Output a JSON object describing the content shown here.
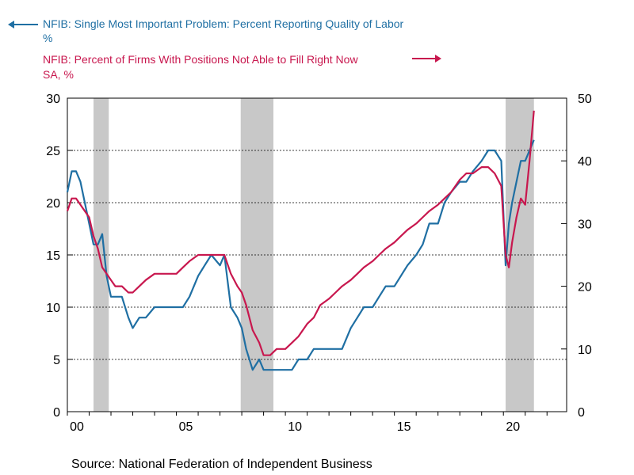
{
  "legend": {
    "series1_label": "NFIB: Single Most Important Problem: Percent Reporting Quality of Labor",
    "series1_unit": "%",
    "series2_label": "NFIB: Percent of Firms With Positions Not Able to Fill Right Now",
    "series2_unit": "SA, %"
  },
  "source": "Source:  National Federation of Independent Business",
  "chart_data": {
    "type": "line",
    "colors": {
      "series1": "#1f6fa3",
      "series2": "#c8174e",
      "recession": "#c8c8c8"
    },
    "grid": "horizontal dashed at left-axis ticks",
    "left_axis": {
      "ticks": [
        "0",
        "5",
        "10",
        "15",
        "20",
        "25",
        "30"
      ],
      "ylim": [
        0,
        30
      ]
    },
    "right_axis": {
      "ticks": [
        "0",
        "10",
        "20",
        "30",
        "40",
        "50"
      ],
      "ylim": [
        0,
        50
      ]
    },
    "x_axis": {
      "ticks": [
        "00",
        "05",
        "10",
        "15",
        "20"
      ],
      "xlim": [
        2000,
        2022.9
      ]
    },
    "recessions": [
      [
        2001.2,
        2001.9
      ],
      [
        2007.95,
        2009.45
      ],
      [
        2020.1,
        2021.4
      ]
    ],
    "series": [
      {
        "name": "NFIB: Single Most Important Problem: Percent Reporting Quality of Labor",
        "axis": "left",
        "x": [
          2000.0,
          2000.2,
          2000.4,
          2000.6,
          2000.8,
          2001.0,
          2001.2,
          2001.4,
          2001.6,
          2001.8,
          2002.0,
          2002.2,
          2002.5,
          2002.8,
          2003.0,
          2003.3,
          2003.6,
          2004.0,
          2004.3,
          2004.6,
          2005.0,
          2005.3,
          2005.6,
          2006.0,
          2006.3,
          2006.6,
          2007.0,
          2007.2,
          2007.5,
          2007.8,
          2008.0,
          2008.2,
          2008.5,
          2008.8,
          2009.0,
          2009.3,
          2009.6,
          2010.0,
          2010.3,
          2010.6,
          2011.0,
          2011.3,
          2011.6,
          2012.0,
          2012.3,
          2012.6,
          2013.0,
          2013.3,
          2013.6,
          2014.0,
          2014.3,
          2014.6,
          2015.0,
          2015.3,
          2015.6,
          2016.0,
          2016.3,
          2016.6,
          2017.0,
          2017.3,
          2017.6,
          2018.0,
          2018.3,
          2018.6,
          2019.0,
          2019.3,
          2019.6,
          2019.9,
          2020.1,
          2020.25,
          2020.4,
          2020.6,
          2020.8,
          2021.0,
          2021.2,
          2021.4
        ],
        "values": [
          21,
          23,
          23,
          22,
          20,
          18,
          16,
          16,
          17,
          13,
          11,
          11,
          11,
          9,
          8,
          9,
          9,
          10,
          10,
          10,
          10,
          10,
          11,
          13,
          14,
          15,
          14,
          15,
          10,
          9,
          8,
          6,
          4,
          5,
          4,
          4,
          4,
          4,
          4,
          5,
          5,
          6,
          6,
          6,
          6,
          6,
          8,
          9,
          10,
          10,
          11,
          12,
          12,
          13,
          14,
          15,
          16,
          18,
          18,
          20,
          21,
          22,
          22,
          23,
          24,
          25,
          25,
          24,
          14,
          18,
          20,
          22,
          24,
          24,
          25,
          26
        ]
      },
      {
        "name": "NFIB: Percent of Firms With Positions Not Able to Fill Right Now",
        "axis": "right",
        "x": [
          2000.0,
          2000.2,
          2000.4,
          2000.6,
          2000.8,
          2001.0,
          2001.2,
          2001.4,
          2001.6,
          2001.8,
          2002.0,
          2002.2,
          2002.5,
          2002.8,
          2003.0,
          2003.3,
          2003.6,
          2004.0,
          2004.3,
          2004.6,
          2005.0,
          2005.3,
          2005.6,
          2006.0,
          2006.3,
          2006.6,
          2007.0,
          2007.2,
          2007.5,
          2007.8,
          2008.0,
          2008.2,
          2008.5,
          2008.8,
          2009.0,
          2009.3,
          2009.6,
          2010.0,
          2010.3,
          2010.6,
          2011.0,
          2011.3,
          2011.6,
          2012.0,
          2012.3,
          2012.6,
          2013.0,
          2013.3,
          2013.6,
          2014.0,
          2014.3,
          2014.6,
          2015.0,
          2015.3,
          2015.6,
          2016.0,
          2016.3,
          2016.6,
          2017.0,
          2017.3,
          2017.6,
          2018.0,
          2018.3,
          2018.6,
          2019.0,
          2019.3,
          2019.6,
          2019.9,
          2020.1,
          2020.25,
          2020.4,
          2020.6,
          2020.8,
          2021.0,
          2021.2,
          2021.4
        ],
        "values": [
          32,
          34,
          34,
          33,
          32,
          31,
          28,
          26,
          23,
          22,
          21,
          20,
          20,
          19,
          19,
          20,
          21,
          22,
          22,
          22,
          22,
          23,
          24,
          25,
          25,
          25,
          25,
          25,
          22,
          20,
          19,
          17,
          13,
          11,
          9,
          9,
          10,
          10,
          11,
          12,
          14,
          15,
          17,
          18,
          19,
          20,
          21,
          22,
          23,
          24,
          25,
          26,
          27,
          28,
          29,
          30,
          31,
          32,
          33,
          34,
          35,
          37,
          38,
          38,
          39,
          39,
          38,
          36,
          25,
          23,
          27,
          31,
          34,
          33,
          40,
          48
        ]
      }
    ]
  }
}
